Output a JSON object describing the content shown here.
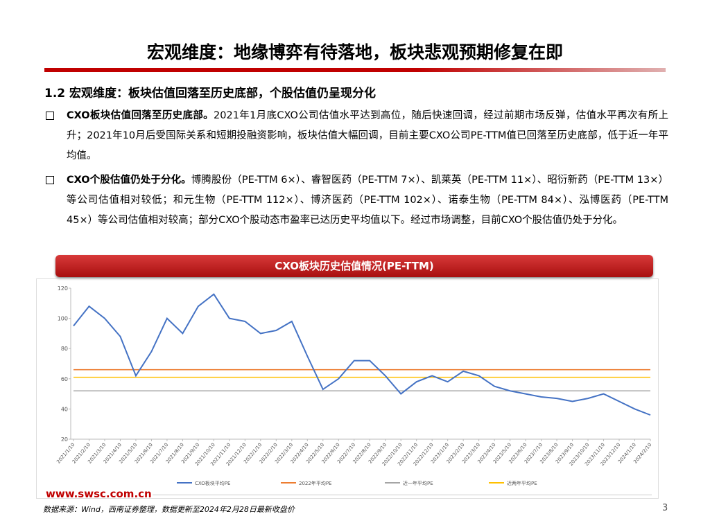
{
  "slide": {
    "title": "宏观维度：地缘博弈有待落地，板块悲观预期修复在即",
    "section": "1.2 宏观维度：板块估值回落至历史底部，个股估值仍呈现分化",
    "bullets": [
      {
        "lead": "CXO板块估值回落至历史底部。",
        "text": "2021年1月底CXO公司估值水平达到高位，随后快速回调，经过前期市场反弹，估值水平再次有所上升；2021年10月后受国际关系和短期投融资影响，板块估值大幅回调，目前主要CXO公司PE-TTM值已回落至历史底部，低于近一年平均值。"
      },
      {
        "lead": "CXO个股估值仍处于分化。",
        "text": "博腾股份（PE-TTM 6×）、睿智医药（PE-TTM 7×）、凯莱英（PE-TTM 11×）、昭衍新药（PE-TTM 13×）等公司估值相对较低；和元生物（PE-TTM 112×）、博济医药（PE-TTM 102×）、诺泰生物（PE-TTM 84×）、泓博医药（PE-TTM 45×）等公司估值相对较高；部分CXO个股动态市盈率已达历史平均值以下。经过市场调整，目前CXO个股估值仍处于分化。"
      }
    ],
    "chart_header": "CXO板块历史估值情况(PE-TTM)",
    "website": "www.swsc.com.cn",
    "source": "数据来源：Wind，西南证券整理，数据更新至2024年2月28日最新收盘价",
    "page": "3"
  },
  "chart_data": {
    "type": "line",
    "categories": [
      "2021/1/10",
      "2021/2/10",
      "2021/3/10",
      "2021/4/10",
      "2021/5/10",
      "2021/6/10",
      "2021/7/10",
      "2021/8/10",
      "2021/9/10",
      "2021/10/10",
      "2021/11/10",
      "2021/12/10",
      "2022/1/10",
      "2022/2/10",
      "2022/3/10",
      "2022/4/10",
      "2022/5/10",
      "2022/6/10",
      "2022/7/10",
      "2022/8/10",
      "2022/9/10",
      "2022/10/10",
      "2022/11/10",
      "2022/12/10",
      "2023/1/10",
      "2023/2/10",
      "2023/3/10",
      "2023/4/10",
      "2023/5/10",
      "2023/6/10",
      "2023/7/10",
      "2023/8/10",
      "2023/9/10",
      "2023/10/10",
      "2023/11/10",
      "2023/12/10",
      "2024/1/10",
      "2024/2/10"
    ],
    "series": [
      {
        "name": "CXO板块平均PE",
        "color": "#4472c4",
        "values": [
          95,
          108,
          100,
          88,
          62,
          78,
          100,
          90,
          108,
          116,
          100,
          98,
          90,
          92,
          98,
          75,
          53,
          60,
          72,
          72,
          62,
          50,
          58,
          62,
          58,
          65,
          62,
          55,
          52,
          50,
          48,
          47,
          45,
          47,
          50,
          45,
          40,
          36
        ]
      }
    ],
    "reference_lines": [
      {
        "name": "2022年平均PE",
        "color": "#ed7d31",
        "value": 66
      },
      {
        "name": "近一年平均PE",
        "color": "#a5a5a5",
        "value": 52
      },
      {
        "name": "近两年平均PE",
        "color": "#ffc000",
        "value": 61
      }
    ],
    "ylim": [
      20,
      120
    ],
    "yticks": [
      20,
      40,
      60,
      80,
      100,
      120
    ]
  }
}
